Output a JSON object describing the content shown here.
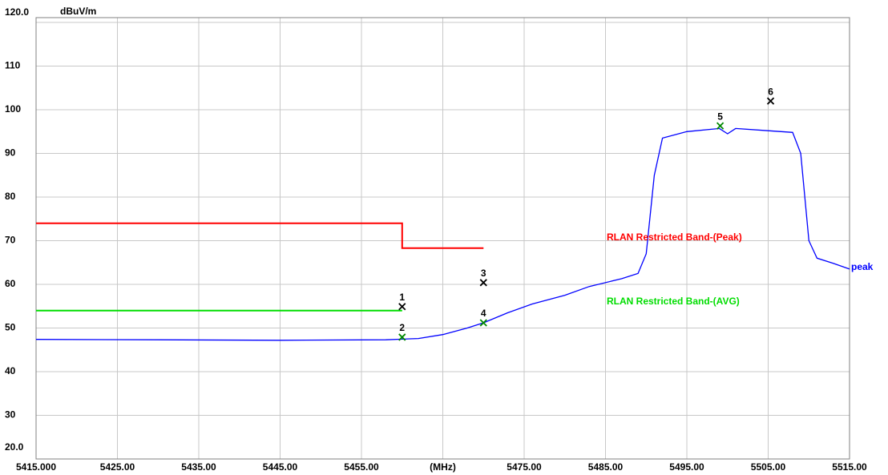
{
  "chart_data": {
    "type": "line",
    "y_label": "dBuV/m",
    "xlim": [
      5415,
      5515
    ],
    "ylim": [
      20,
      120
    ],
    "xticks": [
      {
        "value": 5415,
        "label": "5415.000"
      },
      {
        "value": 5425,
        "label": "5425.00"
      },
      {
        "value": 5435,
        "label": "5435.00"
      },
      {
        "value": 5445,
        "label": "5445.00"
      },
      {
        "value": 5455,
        "label": "5455.00"
      },
      {
        "value": 5465,
        "label": "(MHz)"
      },
      {
        "value": 5475,
        "label": "5475.00"
      },
      {
        "value": 5485,
        "label": "5485.00"
      },
      {
        "value": 5495,
        "label": "5495.00"
      },
      {
        "value": 5505,
        "label": "5505.00"
      },
      {
        "value": 5515,
        "label": "5515.00"
      }
    ],
    "yticks": [
      {
        "value": 120,
        "label": "120.0"
      },
      110,
      100,
      90,
      80,
      70,
      60,
      50,
      40,
      30,
      {
        "value": 20,
        "label": "20.0"
      }
    ],
    "grid": true,
    "series": [
      {
        "name": "peak",
        "color": "#0000ff",
        "x": [
          5415,
          5430,
          5445,
          5458,
          5462,
          5465,
          5468,
          5470,
          5473,
          5476,
          5480,
          5483,
          5487,
          5489,
          5490,
          5491,
          5492,
          5495,
          5499,
          5500,
          5501,
          5505,
          5508,
          5509,
          5510,
          5511,
          5513,
          5515
        ],
        "values": [
          47.4,
          47.3,
          47.2,
          47.3,
          47.6,
          48.5,
          50,
          51.2,
          53.5,
          55.5,
          57.5,
          59.5,
          61.3,
          62.5,
          67,
          85,
          93.5,
          95,
          95.7,
          94.5,
          95.7,
          95.2,
          94.8,
          90,
          70,
          66,
          64.8,
          63.5
        ]
      },
      {
        "name": "RLAN Restricted Band-(Peak)",
        "color": "#ff0000",
        "x": [
          5415,
          5460,
          5460,
          5470
        ],
        "values": [
          74,
          74,
          68.3,
          68.3
        ]
      },
      {
        "name": "RLAN Restricted Band-(AVG)",
        "color": "#00dd00",
        "x": [
          5415,
          5460
        ],
        "values": [
          54,
          54
        ]
      }
    ],
    "markers": [
      {
        "label": "1",
        "x": 5460,
        "value": 54.9,
        "color": "#000000"
      },
      {
        "label": "2",
        "x": 5460,
        "value": 47.9,
        "color": "#008800"
      },
      {
        "label": "3",
        "x": 5470,
        "value": 60.4,
        "color": "#000000"
      },
      {
        "label": "4",
        "x": 5470,
        "value": 51.2,
        "color": "#008800"
      },
      {
        "label": "5",
        "x": 5499.1,
        "value": 96.3,
        "color": "#008800"
      },
      {
        "label": "6",
        "x": 5505.3,
        "value": 102,
        "color": "#000000"
      }
    ]
  }
}
